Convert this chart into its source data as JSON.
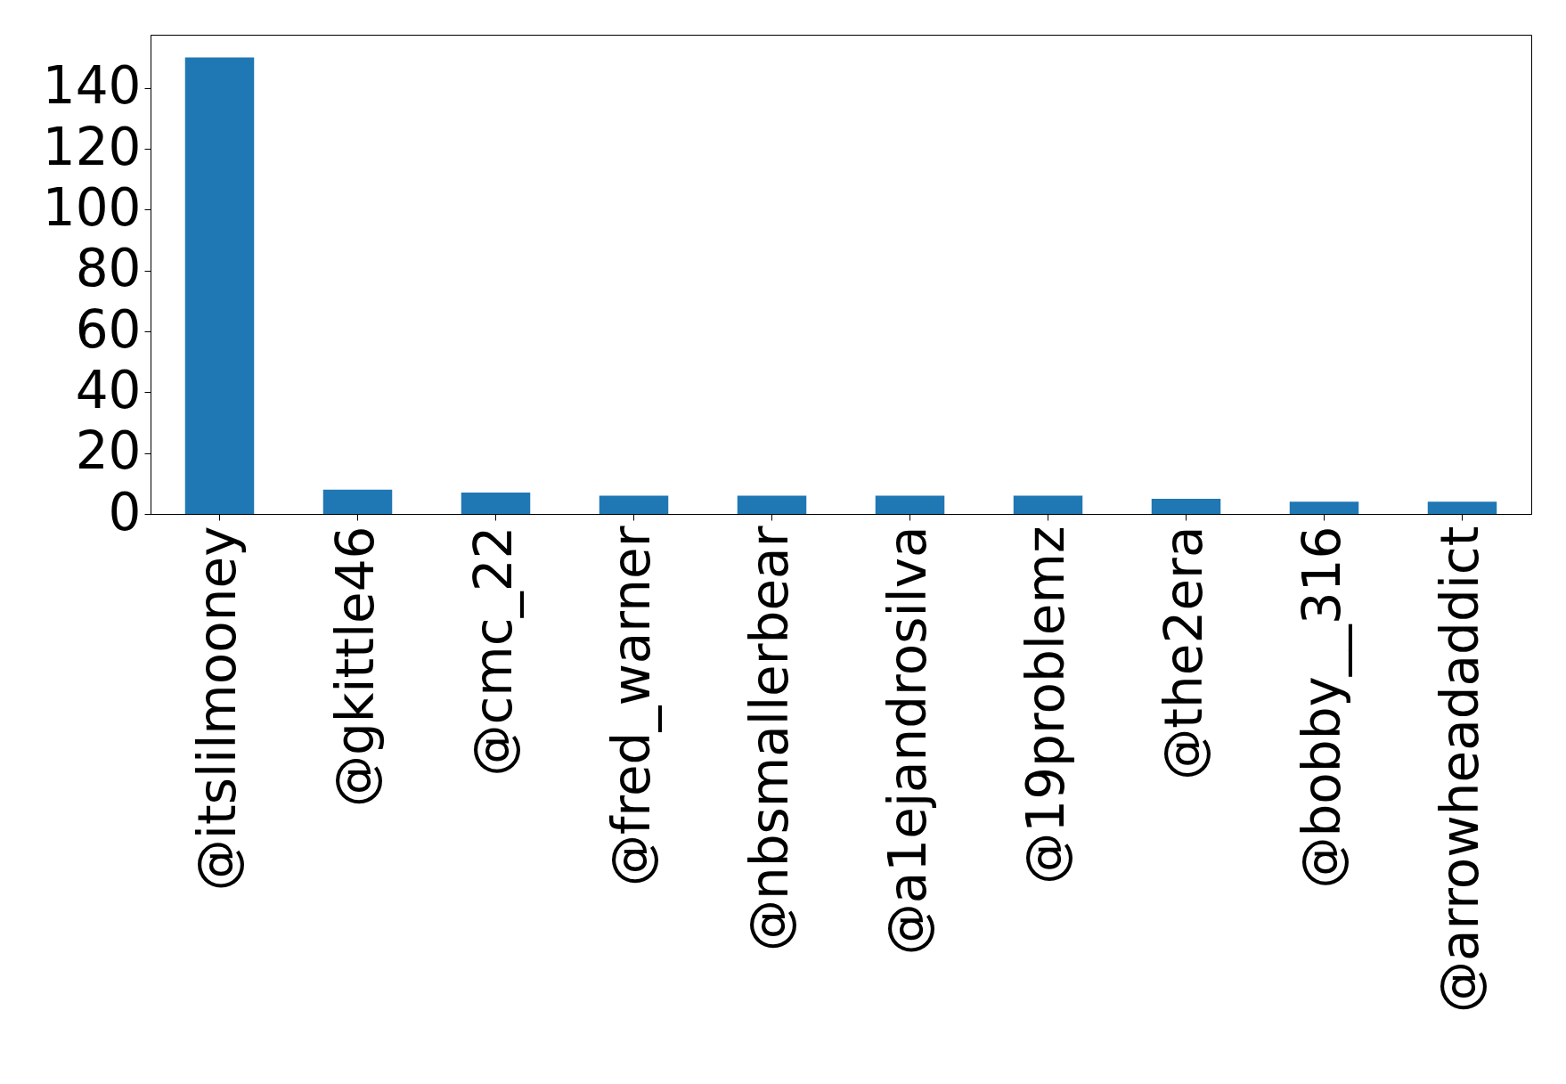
{
  "chart_data": {
    "type": "bar",
    "categories": [
      "@itslilmooney",
      "@gkittle46",
      "@cmc_22",
      "@fred_warner",
      "@nbsmallerbear",
      "@a1ejandrosilva",
      "@19problemz",
      "@the2era",
      "@bobby__316",
      "@arrowheadaddict"
    ],
    "values": [
      150,
      8,
      7,
      6,
      6,
      6,
      6,
      5,
      4,
      4
    ],
    "color": "#1f77b4",
    "ylim": [
      0,
      157.5
    ],
    "yticks": [
      0,
      20,
      40,
      60,
      80,
      100,
      120,
      140
    ],
    "grid": false
  }
}
